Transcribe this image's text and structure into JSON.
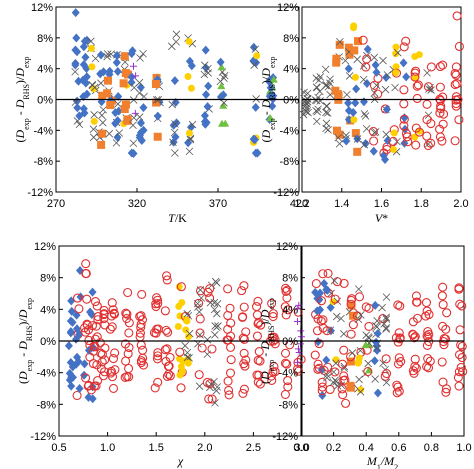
{
  "y_axis_label": "(D_exp - D_RHS)/D_exp",
  "colors": {
    "diamond": "#4472c4",
    "circle": "#e03030",
    "cross": "#555555",
    "square": "#f07f2e",
    "dot": "#ffd000",
    "plus": "#9b30d0",
    "triangle": "#70c040",
    "zero_line": "#000000"
  },
  "chart_data": [
    {
      "type": "scatter",
      "xlabel": "T/K",
      "xticks": [
        "270",
        "320",
        "370",
        "420"
      ],
      "xlim": [
        270,
        420
      ],
      "ylim": [
        -12,
        12
      ],
      "yticks": [
        "-12%",
        "-8%",
        "-4%",
        "0%",
        "4%",
        "8%",
        "12%"
      ],
      "columns": [
        {
          "x": 283,
          "ymin": -4,
          "ymax": 11.5,
          "kinds": [
            "diamond",
            "cross"
          ]
        },
        {
          "x": 288,
          "ymin": -2,
          "ymax": 8,
          "kinds": [
            "diamond"
          ]
        },
        {
          "x": 293,
          "ymin": -5,
          "ymax": 9,
          "kinds": [
            "cross",
            "dot"
          ]
        },
        {
          "x": 298,
          "ymin": -6,
          "ymax": 7,
          "kinds": [
            "cross",
            "diamond",
            "square"
          ]
        },
        {
          "x": 303,
          "ymin": -5,
          "ymax": 6,
          "kinds": [
            "square",
            "cross",
            "diamond"
          ]
        },
        {
          "x": 308,
          "ymin": -6,
          "ymax": 7,
          "kinds": [
            "diamond",
            "cross"
          ]
        },
        {
          "x": 313,
          "ymin": -4,
          "ymax": 6,
          "kinds": [
            "dot",
            "square",
            "cross"
          ]
        },
        {
          "x": 318,
          "ymin": -7,
          "ymax": 8,
          "kinds": [
            "cross",
            "diamond",
            "plus"
          ]
        },
        {
          "x": 323,
          "ymin": -6,
          "ymax": 6,
          "kinds": [
            "diamond",
            "cross"
          ]
        },
        {
          "x": 333,
          "ymin": -5,
          "ymax": 5,
          "kinds": [
            "diamond",
            "cross",
            "square"
          ]
        },
        {
          "x": 343,
          "ymin": -7,
          "ymax": 9,
          "kinds": [
            "diamond",
            "cross"
          ]
        },
        {
          "x": 353,
          "ymin": -7,
          "ymax": 8,
          "kinds": [
            "cross",
            "diamond",
            "dot"
          ]
        },
        {
          "x": 363,
          "ymin": -5,
          "ymax": 7,
          "kinds": [
            "diamond",
            "cross"
          ]
        },
        {
          "x": 373,
          "ymin": -4,
          "ymax": 5,
          "kinds": [
            "diamond",
            "triangle",
            "cross"
          ]
        },
        {
          "x": 393,
          "ymin": -7,
          "ymax": 8,
          "kinds": [
            "diamond",
            "cross",
            "dot"
          ]
        },
        {
          "x": 403,
          "ymin": -3,
          "ymax": 3,
          "kinds": [
            "diamond",
            "triangle"
          ]
        }
      ]
    },
    {
      "type": "scatter",
      "xlabel": "V*",
      "xticks": [
        "1.2",
        "1.4",
        "1.6",
        "1.8",
        "2.0"
      ],
      "xlim": [
        1.2,
        2.0
      ],
      "ylim": [
        -12,
        12
      ],
      "yticks": [
        "-12%",
        "-8%",
        "-4%",
        "0%",
        "4%",
        "8%",
        "12%"
      ],
      "columns": [
        {
          "x": 1.22,
          "ymin": -2,
          "ymax": 1,
          "kinds": [
            "cross"
          ]
        },
        {
          "x": 1.28,
          "ymin": -3,
          "ymax": 3,
          "kinds": [
            "cross"
          ]
        },
        {
          "x": 1.33,
          "ymin": -4,
          "ymax": 5,
          "kinds": [
            "cross"
          ]
        },
        {
          "x": 1.38,
          "ymin": -6,
          "ymax": 8,
          "kinds": [
            "cross",
            "square"
          ]
        },
        {
          "x": 1.43,
          "ymin": -6,
          "ymax": 7,
          "kinds": [
            "cross",
            "square",
            "diamond"
          ]
        },
        {
          "x": 1.47,
          "ymin": -7,
          "ymax": 11,
          "kinds": [
            "diamond",
            "cross",
            "square",
            "dot"
          ]
        },
        {
          "x": 1.52,
          "ymin": -8,
          "ymax": 8,
          "kinds": [
            "diamond",
            "circle",
            "cross"
          ]
        },
        {
          "x": 1.57,
          "ymin": -7,
          "ymax": 8,
          "kinds": [
            "circle",
            "diamond",
            "cross"
          ]
        },
        {
          "x": 1.62,
          "ymin": -8,
          "ymax": 6,
          "kinds": [
            "circle",
            "cross",
            "diamond"
          ]
        },
        {
          "x": 1.67,
          "ymin": -7,
          "ymax": 7,
          "kinds": [
            "circle",
            "dot",
            "cross"
          ]
        },
        {
          "x": 1.72,
          "ymin": -6,
          "ymax": 8,
          "kinds": [
            "circle",
            "diamond"
          ]
        },
        {
          "x": 1.78,
          "ymin": -8,
          "ymax": 6,
          "kinds": [
            "circle",
            "dot"
          ]
        },
        {
          "x": 1.84,
          "ymin": -6,
          "ymax": 5,
          "kinds": [
            "circle",
            "cross"
          ]
        },
        {
          "x": 1.9,
          "ymin": -7,
          "ymax": 7,
          "kinds": [
            "circle"
          ]
        },
        {
          "x": 1.98,
          "ymin": -8,
          "ymax": 11,
          "kinds": [
            "circle"
          ]
        }
      ]
    },
    {
      "type": "scatter",
      "xlabel": "χ",
      "xticks": [
        "0.5",
        "1.0",
        "1.5",
        "2.0",
        "2.5",
        "3.0"
      ],
      "xlim": [
        0.5,
        3.0
      ],
      "ylim": [
        -12,
        12
      ],
      "yticks": [
        "-12%",
        "-8%",
        "-4%",
        "0%",
        "4%",
        "8%",
        "12%"
      ],
      "columns": [
        {
          "x": 0.62,
          "ymin": -6,
          "ymax": 6,
          "kinds": [
            "diamond"
          ]
        },
        {
          "x": 0.7,
          "ymin": -7,
          "ymax": 9,
          "kinds": [
            "diamond",
            "circle"
          ]
        },
        {
          "x": 0.78,
          "ymin": -8,
          "ymax": 11,
          "kinds": [
            "diamond",
            "circle"
          ]
        },
        {
          "x": 0.83,
          "ymin": -8,
          "ymax": 7,
          "kinds": [
            "diamond",
            "circle"
          ]
        },
        {
          "x": 0.88,
          "ymin": -6,
          "ymax": 5,
          "kinds": [
            "circle"
          ]
        },
        {
          "x": 0.95,
          "ymin": -5,
          "ymax": 4,
          "kinds": [
            "circle"
          ]
        },
        {
          "x": 1.05,
          "ymin": -6,
          "ymax": 6,
          "kinds": [
            "circle"
          ]
        },
        {
          "x": 1.2,
          "ymin": -5,
          "ymax": 7,
          "kinds": [
            "circle"
          ]
        },
        {
          "x": 1.35,
          "ymin": -4,
          "ymax": 6,
          "kinds": [
            "circle"
          ]
        },
        {
          "x": 1.5,
          "ymin": -6,
          "ymax": 8,
          "kinds": [
            "circle"
          ]
        },
        {
          "x": 1.62,
          "ymin": -5,
          "ymax": 9,
          "kinds": [
            "circle"
          ]
        },
        {
          "x": 1.75,
          "ymin": -6,
          "ymax": 7,
          "kinds": [
            "dot",
            "circle"
          ]
        },
        {
          "x": 1.82,
          "ymin": -4,
          "ymax": 5,
          "kinds": [
            "dot",
            "circle",
            "cross"
          ]
        },
        {
          "x": 1.95,
          "ymin": -6,
          "ymax": 7,
          "kinds": [
            "circle",
            "cross"
          ]
        },
        {
          "x": 2.05,
          "ymin": -8,
          "ymax": 8,
          "kinds": [
            "cross",
            "circle"
          ]
        },
        {
          "x": 2.12,
          "ymin": -8,
          "ymax": 8,
          "kinds": [
            "cross"
          ]
        },
        {
          "x": 2.25,
          "ymin": -7,
          "ymax": 7,
          "kinds": [
            "circle"
          ]
        },
        {
          "x": 2.4,
          "ymin": -7,
          "ymax": 7,
          "kinds": [
            "circle"
          ]
        },
        {
          "x": 2.55,
          "ymin": -6,
          "ymax": 6,
          "kinds": [
            "circle"
          ]
        },
        {
          "x": 2.7,
          "ymin": -5,
          "ymax": 5,
          "kinds": [
            "circle"
          ]
        },
        {
          "x": 2.85,
          "ymin": -7,
          "ymax": 7,
          "kinds": [
            "circle"
          ]
        },
        {
          "x": 2.97,
          "ymin": -4,
          "ymax": 5,
          "kinds": [
            "circle",
            "plus"
          ]
        }
      ]
    },
    {
      "type": "scatter",
      "xlabel": "M1/M2",
      "xticks": [
        "0.0",
        "0.2",
        "0.4",
        "0.6",
        "0.8",
        "1.0"
      ],
      "xlim": [
        0.0,
        1.0
      ],
      "ylim": [
        -12,
        12
      ],
      "yticks": [
        "-12%",
        "-8%",
        "-4%",
        "0%",
        "4%",
        "8%",
        "12%"
      ],
      "columns": [
        {
          "x": 0.1,
          "ymin": -6,
          "ymax": 8,
          "kinds": [
            "diamond",
            "circle"
          ]
        },
        {
          "x": 0.13,
          "ymin": -8,
          "ymax": 11,
          "kinds": [
            "diamond",
            "circle"
          ]
        },
        {
          "x": 0.17,
          "ymin": -7,
          "ymax": 9,
          "kinds": [
            "diamond",
            "circle",
            "cross"
          ]
        },
        {
          "x": 0.21,
          "ymin": -6,
          "ymax": 8,
          "kinds": [
            "circle",
            "cross",
            "dot"
          ]
        },
        {
          "x": 0.26,
          "ymin": -8,
          "ymax": 8,
          "kinds": [
            "cross",
            "circle"
          ]
        },
        {
          "x": 0.31,
          "ymin": -6,
          "ymax": 7,
          "kinds": [
            "cross",
            "square",
            "circle"
          ]
        },
        {
          "x": 0.36,
          "ymin": -7,
          "ymax": 7,
          "kinds": [
            "cross",
            "circle",
            "dot"
          ]
        },
        {
          "x": 0.41,
          "ymin": -6,
          "ymax": 6,
          "kinds": [
            "cross",
            "triangle",
            "circle"
          ]
        },
        {
          "x": 0.46,
          "ymin": -7,
          "ymax": 7,
          "kinds": [
            "cross",
            "diamond"
          ]
        },
        {
          "x": 0.51,
          "ymin": -6,
          "ymax": 6,
          "kinds": [
            "circle",
            "cross"
          ]
        },
        {
          "x": 0.6,
          "ymin": -7,
          "ymax": 7,
          "kinds": [
            "circle"
          ]
        },
        {
          "x": 0.7,
          "ymin": -6,
          "ymax": 6,
          "kinds": [
            "circle"
          ]
        },
        {
          "x": 0.78,
          "ymin": -4,
          "ymax": 5,
          "kinds": [
            "circle"
          ]
        },
        {
          "x": 0.88,
          "ymin": -7,
          "ymax": 7,
          "kinds": [
            "circle"
          ]
        },
        {
          "x": 0.98,
          "ymin": -6,
          "ymax": 7,
          "kinds": [
            "circle"
          ]
        }
      ]
    }
  ]
}
